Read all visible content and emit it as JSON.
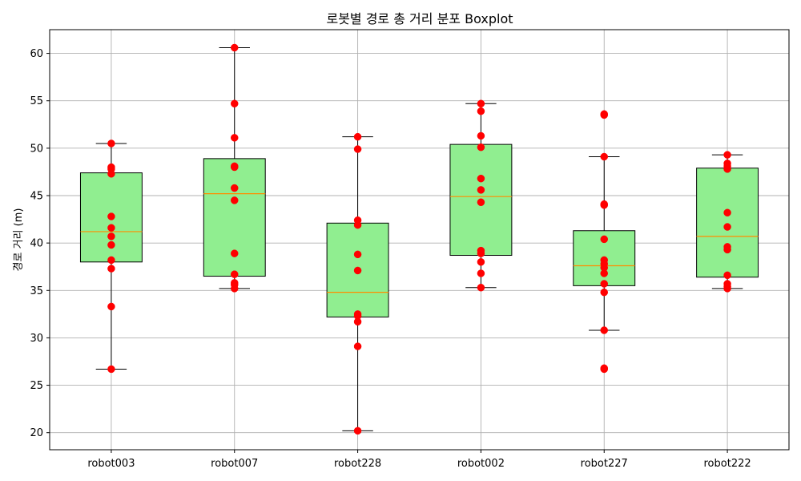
{
  "chart_data": {
    "type": "boxplot",
    "title": "로봇별 경로 총 거리 분포 Boxplot",
    "ylabel": "경로 거리 (m)",
    "xlabel": "",
    "ylim": [
      18.2,
      62.5
    ],
    "yticks": [
      20,
      25,
      30,
      35,
      40,
      45,
      50,
      55,
      60
    ],
    "grid": true,
    "colors": {
      "box_fill": "#90ee90",
      "median": "#ff8c00",
      "point": "#ff0000"
    },
    "categories": [
      "robot003",
      "robot007",
      "robot228",
      "robot002",
      "robot227",
      "robot222"
    ],
    "boxes": [
      {
        "q1": 38.0,
        "median": 41.2,
        "q3": 47.4,
        "whisker_low": 26.7,
        "whisker_high": 50.5,
        "points": [
          50.5,
          48.0,
          47.8,
          47.3,
          42.8,
          41.6,
          40.7,
          39.8,
          38.2,
          37.3,
          33.3,
          26.7
        ]
      },
      {
        "q1": 36.5,
        "median": 45.2,
        "q3": 48.9,
        "whisker_low": 35.2,
        "whisker_high": 60.6,
        "points": [
          60.6,
          54.7,
          51.1,
          48.1,
          48.0,
          45.8,
          44.5,
          38.9,
          36.7,
          35.8,
          35.6,
          35.2
        ]
      },
      {
        "q1": 32.2,
        "median": 34.8,
        "q3": 42.1,
        "whisker_low": 20.2,
        "whisker_high": 51.2,
        "points": [
          51.2,
          49.9,
          42.4,
          41.9,
          38.8,
          37.1,
          32.5,
          32.3,
          31.7,
          29.1,
          20.2
        ]
      },
      {
        "q1": 38.7,
        "median": 44.9,
        "q3": 50.4,
        "whisker_low": 35.3,
        "whisker_high": 54.7,
        "points": [
          54.7,
          53.9,
          51.3,
          50.1,
          46.8,
          45.6,
          44.3,
          39.2,
          38.9,
          38.0,
          36.8,
          35.3
        ]
      },
      {
        "q1": 35.5,
        "median": 37.6,
        "q3": 41.3,
        "whisker_low": 30.8,
        "whisker_high": 49.1,
        "points": [
          53.6,
          53.5,
          49.1,
          44.1,
          44.0,
          40.4,
          38.2,
          37.8,
          37.4,
          36.8,
          35.7,
          34.8,
          30.8,
          26.8,
          26.7
        ]
      },
      {
        "q1": 36.4,
        "median": 40.7,
        "q3": 47.9,
        "whisker_low": 35.2,
        "whisker_high": 49.3,
        "points": [
          49.3,
          48.4,
          48.1,
          47.8,
          43.2,
          41.7,
          39.6,
          39.3,
          36.6,
          35.7,
          35.4,
          35.2
        ]
      }
    ]
  }
}
